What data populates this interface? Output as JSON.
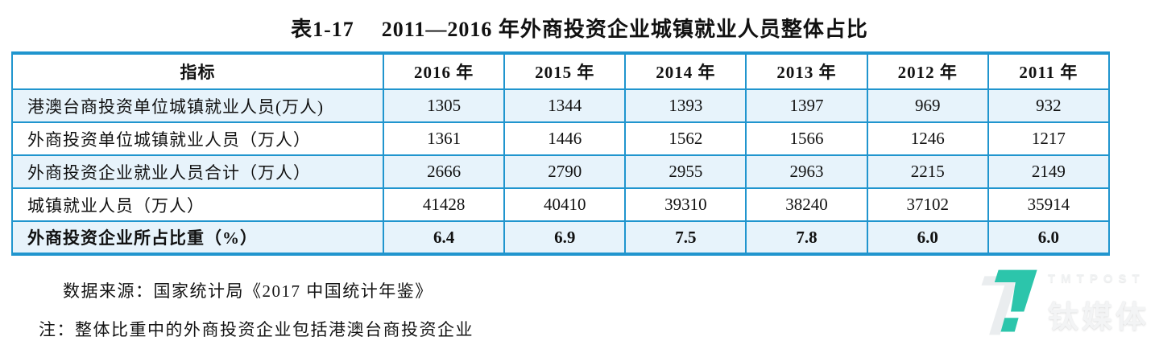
{
  "header": {
    "table_number": "表1-17",
    "title": "2011—2016 年外商投资企业城镇就业人员整体占比"
  },
  "chart_data": {
    "type": "table",
    "title": "表1-17 2011—2016 年外商投资企业城镇就业人员整体占比",
    "columns": [
      "指标",
      "2016 年",
      "2015 年",
      "2014 年",
      "2013 年",
      "2012 年",
      "2011 年"
    ],
    "rows": [
      {
        "label": "港澳台商投资单位城镇就业人员(万人)",
        "values": [
          "1305",
          "1344",
          "1393",
          "1397",
          "969",
          "932"
        ],
        "bold": false
      },
      {
        "label": "外商投资单位城镇就业人员（万人）",
        "values": [
          "1361",
          "1446",
          "1562",
          "1566",
          "1246",
          "1217"
        ],
        "bold": false
      },
      {
        "label": "外商投资企业就业人员合计（万人）",
        "values": [
          "2666",
          "2790",
          "2955",
          "2963",
          "2215",
          "2149"
        ],
        "bold": false
      },
      {
        "label": "城镇就业人员（万人）",
        "values": [
          "41428",
          "40410",
          "39310",
          "38240",
          "37102",
          "35914"
        ],
        "bold": false
      },
      {
        "label": "外商投资企业所占比重（%）",
        "values": [
          "6.4",
          "6.9",
          "7.5",
          "7.8",
          "6.0",
          "6.0"
        ],
        "bold": true
      }
    ]
  },
  "notes": {
    "source": "数据来源：国家统计局《2017 中国统计年鉴》",
    "remark": "注：整体比重中的外商投资企业包括港澳台商投资企业"
  },
  "watermark": {
    "brand_en": "TMTPOST",
    "brand_cn": "钛媒体"
  },
  "colors": {
    "table_border_blue": "#2095ce",
    "row_alternate_bg": "#e7f3fb",
    "logo_teal": "#2cc5ab",
    "watermark_gray": "#edeff1"
  }
}
